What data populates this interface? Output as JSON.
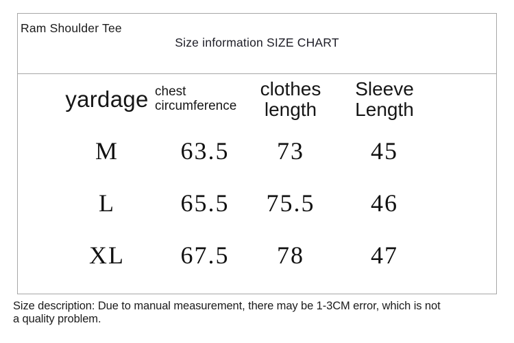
{
  "page": {
    "background": "#ffffff",
    "border_color": "#a6a6a6",
    "text_color": "#1e1e1e"
  },
  "header": {
    "product_title": "Ram Shoulder Tee",
    "chart_title": "Size information SIZE CHART"
  },
  "size_table": {
    "columns": [
      {
        "label": "yardage"
      },
      {
        "label_lines": [
          "chest",
          "circumference"
        ]
      },
      {
        "label_lines": [
          "clothes",
          "length"
        ]
      },
      {
        "label_lines": [
          "Sleeve",
          "Length"
        ]
      }
    ],
    "rows": [
      {
        "size": "M",
        "chest_circumference": "63.5",
        "clothes_length": "73",
        "sleeve_length": "45"
      },
      {
        "size": "L",
        "chest_circumference": "65.5",
        "clothes_length": "75.5",
        "sleeve_length": "46"
      },
      {
        "size": "XL",
        "chest_circumference": "67.5",
        "clothes_length": "78",
        "sleeve_length": "47"
      }
    ]
  },
  "footer": {
    "description_lines": [
      "Size description: Due to manual measurement, there may be 1-3CM error, which is not",
      "a quality problem."
    ]
  }
}
